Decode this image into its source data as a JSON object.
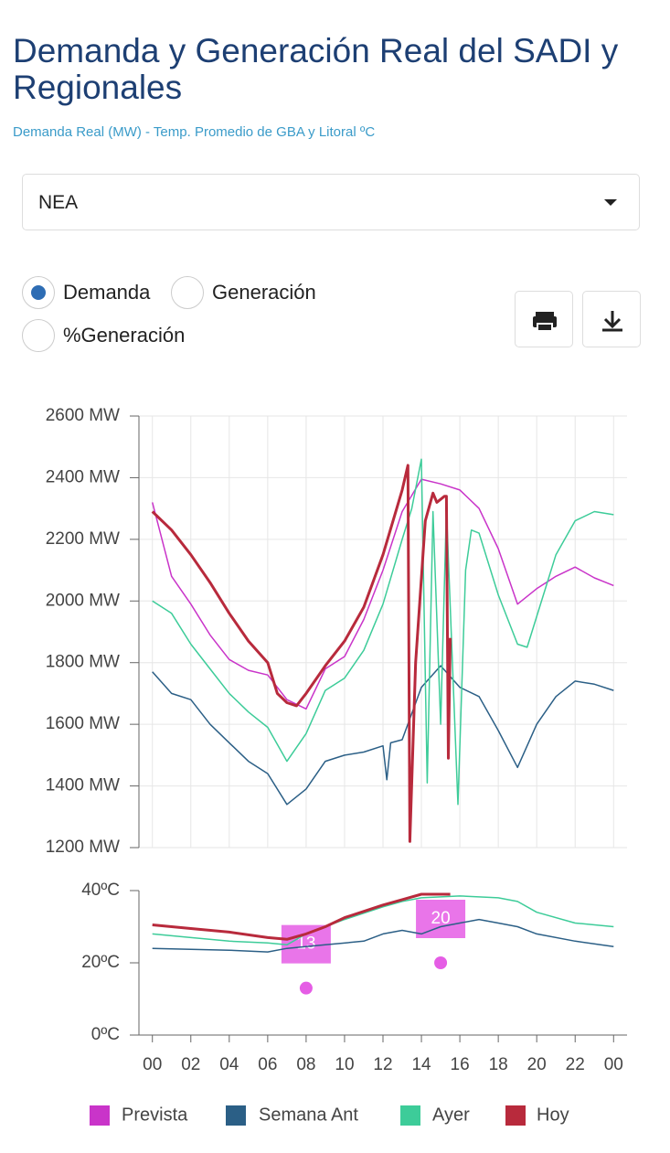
{
  "header": {
    "title": "Demanda y Generación Real del SADI y Regionales",
    "subtitle": "Demanda Real (MW) - Temp. Promedio de GBA y Litoral ºC"
  },
  "controls": {
    "region": "NEA",
    "options": [
      {
        "label": "Demanda",
        "selected": true
      },
      {
        "label": "Generación",
        "selected": false
      },
      {
        "label": "%Generación",
        "selected": false
      }
    ]
  },
  "chart_data": [
    {
      "type": "line",
      "xlim": [
        -0.7,
        24.7
      ],
      "ylim": [
        1200,
        2600
      ],
      "grid": true,
      "yticks": [
        {
          "value": 1200,
          "label": "1200 MW"
        },
        {
          "value": 1400,
          "label": "1400 MW"
        },
        {
          "value": 1600,
          "label": "1600 MW"
        },
        {
          "value": 1800,
          "label": "1800 MW"
        },
        {
          "value": 2000,
          "label": "2000 MW"
        },
        {
          "value": 2200,
          "label": "2200 MW"
        },
        {
          "value": 2400,
          "label": "2400 MW"
        },
        {
          "value": 2600,
          "label": "2600 MW"
        }
      ],
      "series": [
        {
          "name": "Prevista",
          "color": "#c934c9",
          "x": [
            0,
            1,
            2,
            3,
            4,
            5,
            6,
            7,
            8,
            9,
            10,
            11,
            12,
            13,
            14,
            15,
            16,
            17,
            18,
            19,
            20,
            21,
            22,
            23,
            24
          ],
          "values": [
            2320,
            2080,
            1990,
            1890,
            1810,
            1775,
            1760,
            1680,
            1650,
            1780,
            1820,
            1940,
            2100,
            2290,
            2395,
            2380,
            2360,
            2300,
            2170,
            1990,
            2040,
            2080,
            2110,
            2075,
            2050
          ]
        },
        {
          "name": "Semana Ant",
          "color": "#2b5f86",
          "x": [
            0,
            1,
            2,
            3,
            4,
            5,
            6,
            7,
            8,
            9,
            10,
            11,
            12,
            12.2,
            12.4,
            13,
            14,
            15,
            16,
            17,
            18,
            19,
            20,
            21,
            22,
            23,
            24
          ],
          "values": [
            1770,
            1700,
            1680,
            1600,
            1540,
            1480,
            1440,
            1340,
            1390,
            1480,
            1500,
            1510,
            1530,
            1420,
            1540,
            1550,
            1720,
            1790,
            1720,
            1690,
            1580,
            1460,
            1600,
            1690,
            1740,
            1730,
            1710
          ]
        },
        {
          "name": "Ayer",
          "color": "#3dcc99",
          "x": [
            0,
            1,
            2,
            3,
            4,
            5,
            6,
            7,
            8,
            9,
            10,
            11,
            12,
            13,
            13.5,
            14,
            14.3,
            14.6,
            15,
            15.3,
            15.9,
            16.3,
            16.6,
            17,
            18,
            19,
            19.5,
            20,
            21,
            22,
            23,
            24
          ],
          "values": [
            2000,
            1960,
            1860,
            1780,
            1700,
            1640,
            1590,
            1480,
            1570,
            1710,
            1750,
            1840,
            1990,
            2200,
            2300,
            2460,
            1410,
            2290,
            1600,
            2300,
            1340,
            2100,
            2230,
            2220,
            2020,
            1860,
            1850,
            1950,
            2150,
            2260,
            2290,
            2280
          ]
        },
        {
          "name": "Hoy",
          "color": "#b82a3c",
          "width": 3,
          "x": [
            0,
            1,
            2,
            3,
            4,
            5,
            6,
            6.5,
            7,
            7.5,
            8,
            9,
            10,
            11,
            12,
            13,
            13.3,
            13.4,
            13.7,
            14.2,
            14.6,
            14.8,
            15.2,
            15.3,
            15.4,
            15.5
          ],
          "values": [
            2290,
            2230,
            2150,
            2060,
            1960,
            1870,
            1800,
            1700,
            1670,
            1660,
            1700,
            1790,
            1870,
            1980,
            2150,
            2360,
            2440,
            1220,
            1800,
            2260,
            2350,
            2320,
            2340,
            2340,
            1490,
            1880
          ]
        }
      ]
    },
    {
      "type": "line",
      "xlim": [
        -0.7,
        24.7
      ],
      "ylim": [
        0,
        40
      ],
      "grid": false,
      "yticks": [
        {
          "value": 0,
          "label": "0ºC"
        },
        {
          "value": 20,
          "label": "20ºC"
        },
        {
          "value": 40,
          "label": "40ºC"
        }
      ],
      "xticks": [
        {
          "value": 0,
          "label": "00"
        },
        {
          "value": 2,
          "label": "02"
        },
        {
          "value": 4,
          "label": "04"
        },
        {
          "value": 6,
          "label": "06"
        },
        {
          "value": 8,
          "label": "08"
        },
        10,
        12,
        14,
        16,
        18,
        20,
        22,
        {
          "value": 24,
          "label": "00"
        }
      ],
      "series": [
        {
          "name": "Prevista",
          "color": "#e55de5",
          "mode": "markers",
          "x": [
            8,
            15
          ],
          "values": [
            13,
            20
          ]
        },
        {
          "name": "Semana Ant",
          "color": "#2b5f86",
          "x": [
            0,
            4,
            6,
            7,
            9,
            11,
            12,
            13,
            14,
            15,
            16,
            17,
            18,
            19,
            20,
            22,
            24
          ],
          "values": [
            24,
            23.5,
            23,
            24,
            25,
            26,
            28,
            29,
            28,
            30,
            31,
            32,
            31,
            30,
            28,
            26,
            24.5
          ]
        },
        {
          "name": "Ayer",
          "color": "#3dcc99",
          "x": [
            0,
            2,
            4,
            6,
            7,
            8,
            10,
            12,
            13,
            14,
            16,
            18,
            19,
            20,
            22,
            24
          ],
          "values": [
            28,
            27,
            26,
            25.5,
            25,
            28,
            32,
            35.5,
            37,
            38,
            38.5,
            38,
            37,
            34,
            31,
            30
          ]
        },
        {
          "name": "Hoy",
          "color": "#b82a3c",
          "width": 3,
          "x": [
            0,
            2,
            4,
            6,
            7,
            8,
            9,
            10,
            12,
            13,
            14,
            15,
            15.5
          ],
          "values": [
            30.5,
            29.5,
            28.5,
            27,
            26.5,
            28,
            30,
            32.5,
            36,
            37.5,
            39,
            39,
            39
          ]
        }
      ]
    }
  ]
}
